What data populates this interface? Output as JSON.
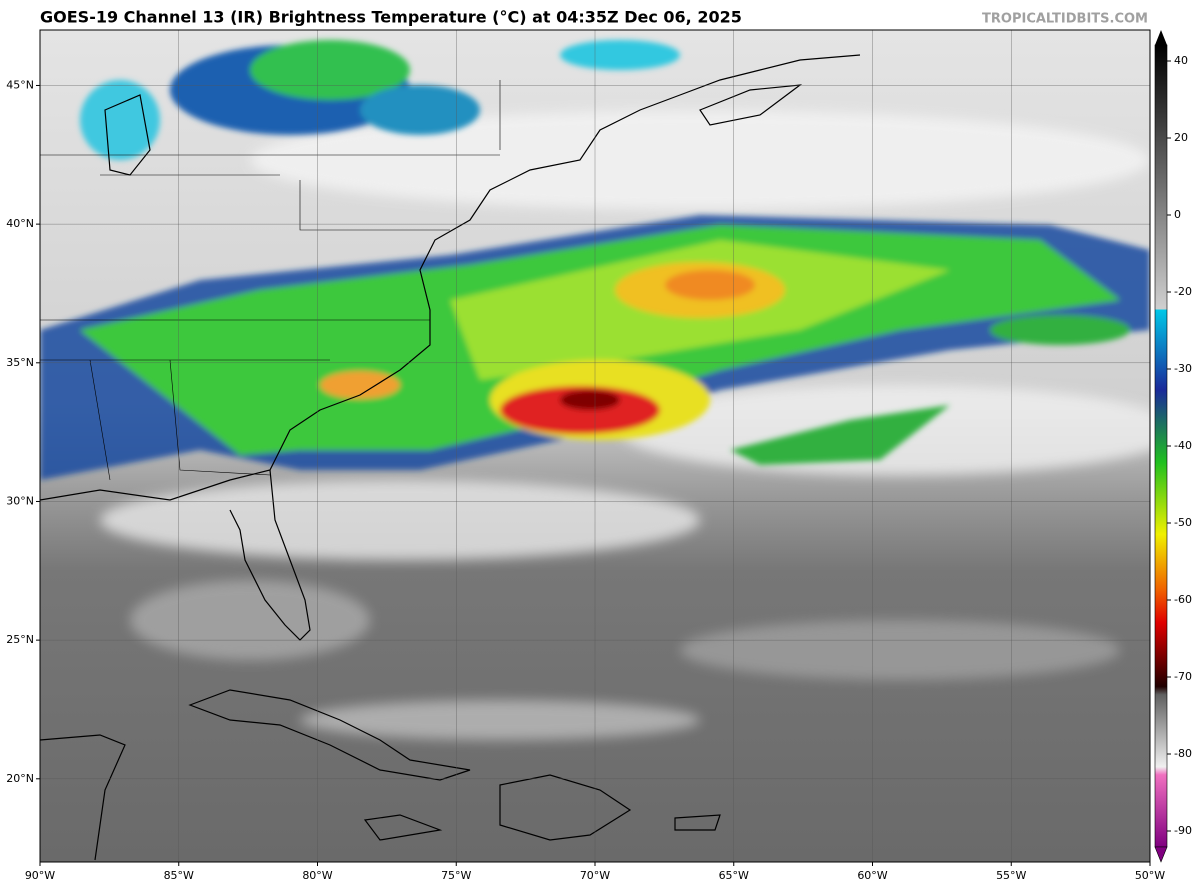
{
  "header": {
    "title": "GOES-19 Channel 13 (IR) Brightness Temperature (°C) at 04:35Z Dec 06, 2025",
    "credit": "TROPICALTIDBITS.COM"
  },
  "map": {
    "lon_lim": [
      -90,
      -50
    ],
    "lat_lim": [
      17,
      47
    ],
    "grid": true,
    "lon_ticks": [
      {
        "value": -90,
        "label": "90°W"
      },
      {
        "value": -85,
        "label": "85°W"
      },
      {
        "value": -80,
        "label": "80°W"
      },
      {
        "value": -75,
        "label": "75°W"
      },
      {
        "value": -70,
        "label": "70°W"
      },
      {
        "value": -65,
        "label": "65°W"
      },
      {
        "value": -60,
        "label": "60°W"
      },
      {
        "value": -55,
        "label": "55°W"
      },
      {
        "value": -50,
        "label": "50°W"
      }
    ],
    "lat_ticks": [
      {
        "value": 20,
        "label": "20°N"
      },
      {
        "value": 25,
        "label": "25°N"
      },
      {
        "value": 30,
        "label": "30°N"
      },
      {
        "value": 35,
        "label": "35°N"
      },
      {
        "value": 40,
        "label": "40°N"
      },
      {
        "value": 45,
        "label": "45°N"
      }
    ]
  },
  "colorbar": {
    "ticks": [
      40,
      20,
      0,
      -20,
      -30,
      -40,
      -50,
      -60,
      -70,
      -80,
      -90
    ]
  }
}
